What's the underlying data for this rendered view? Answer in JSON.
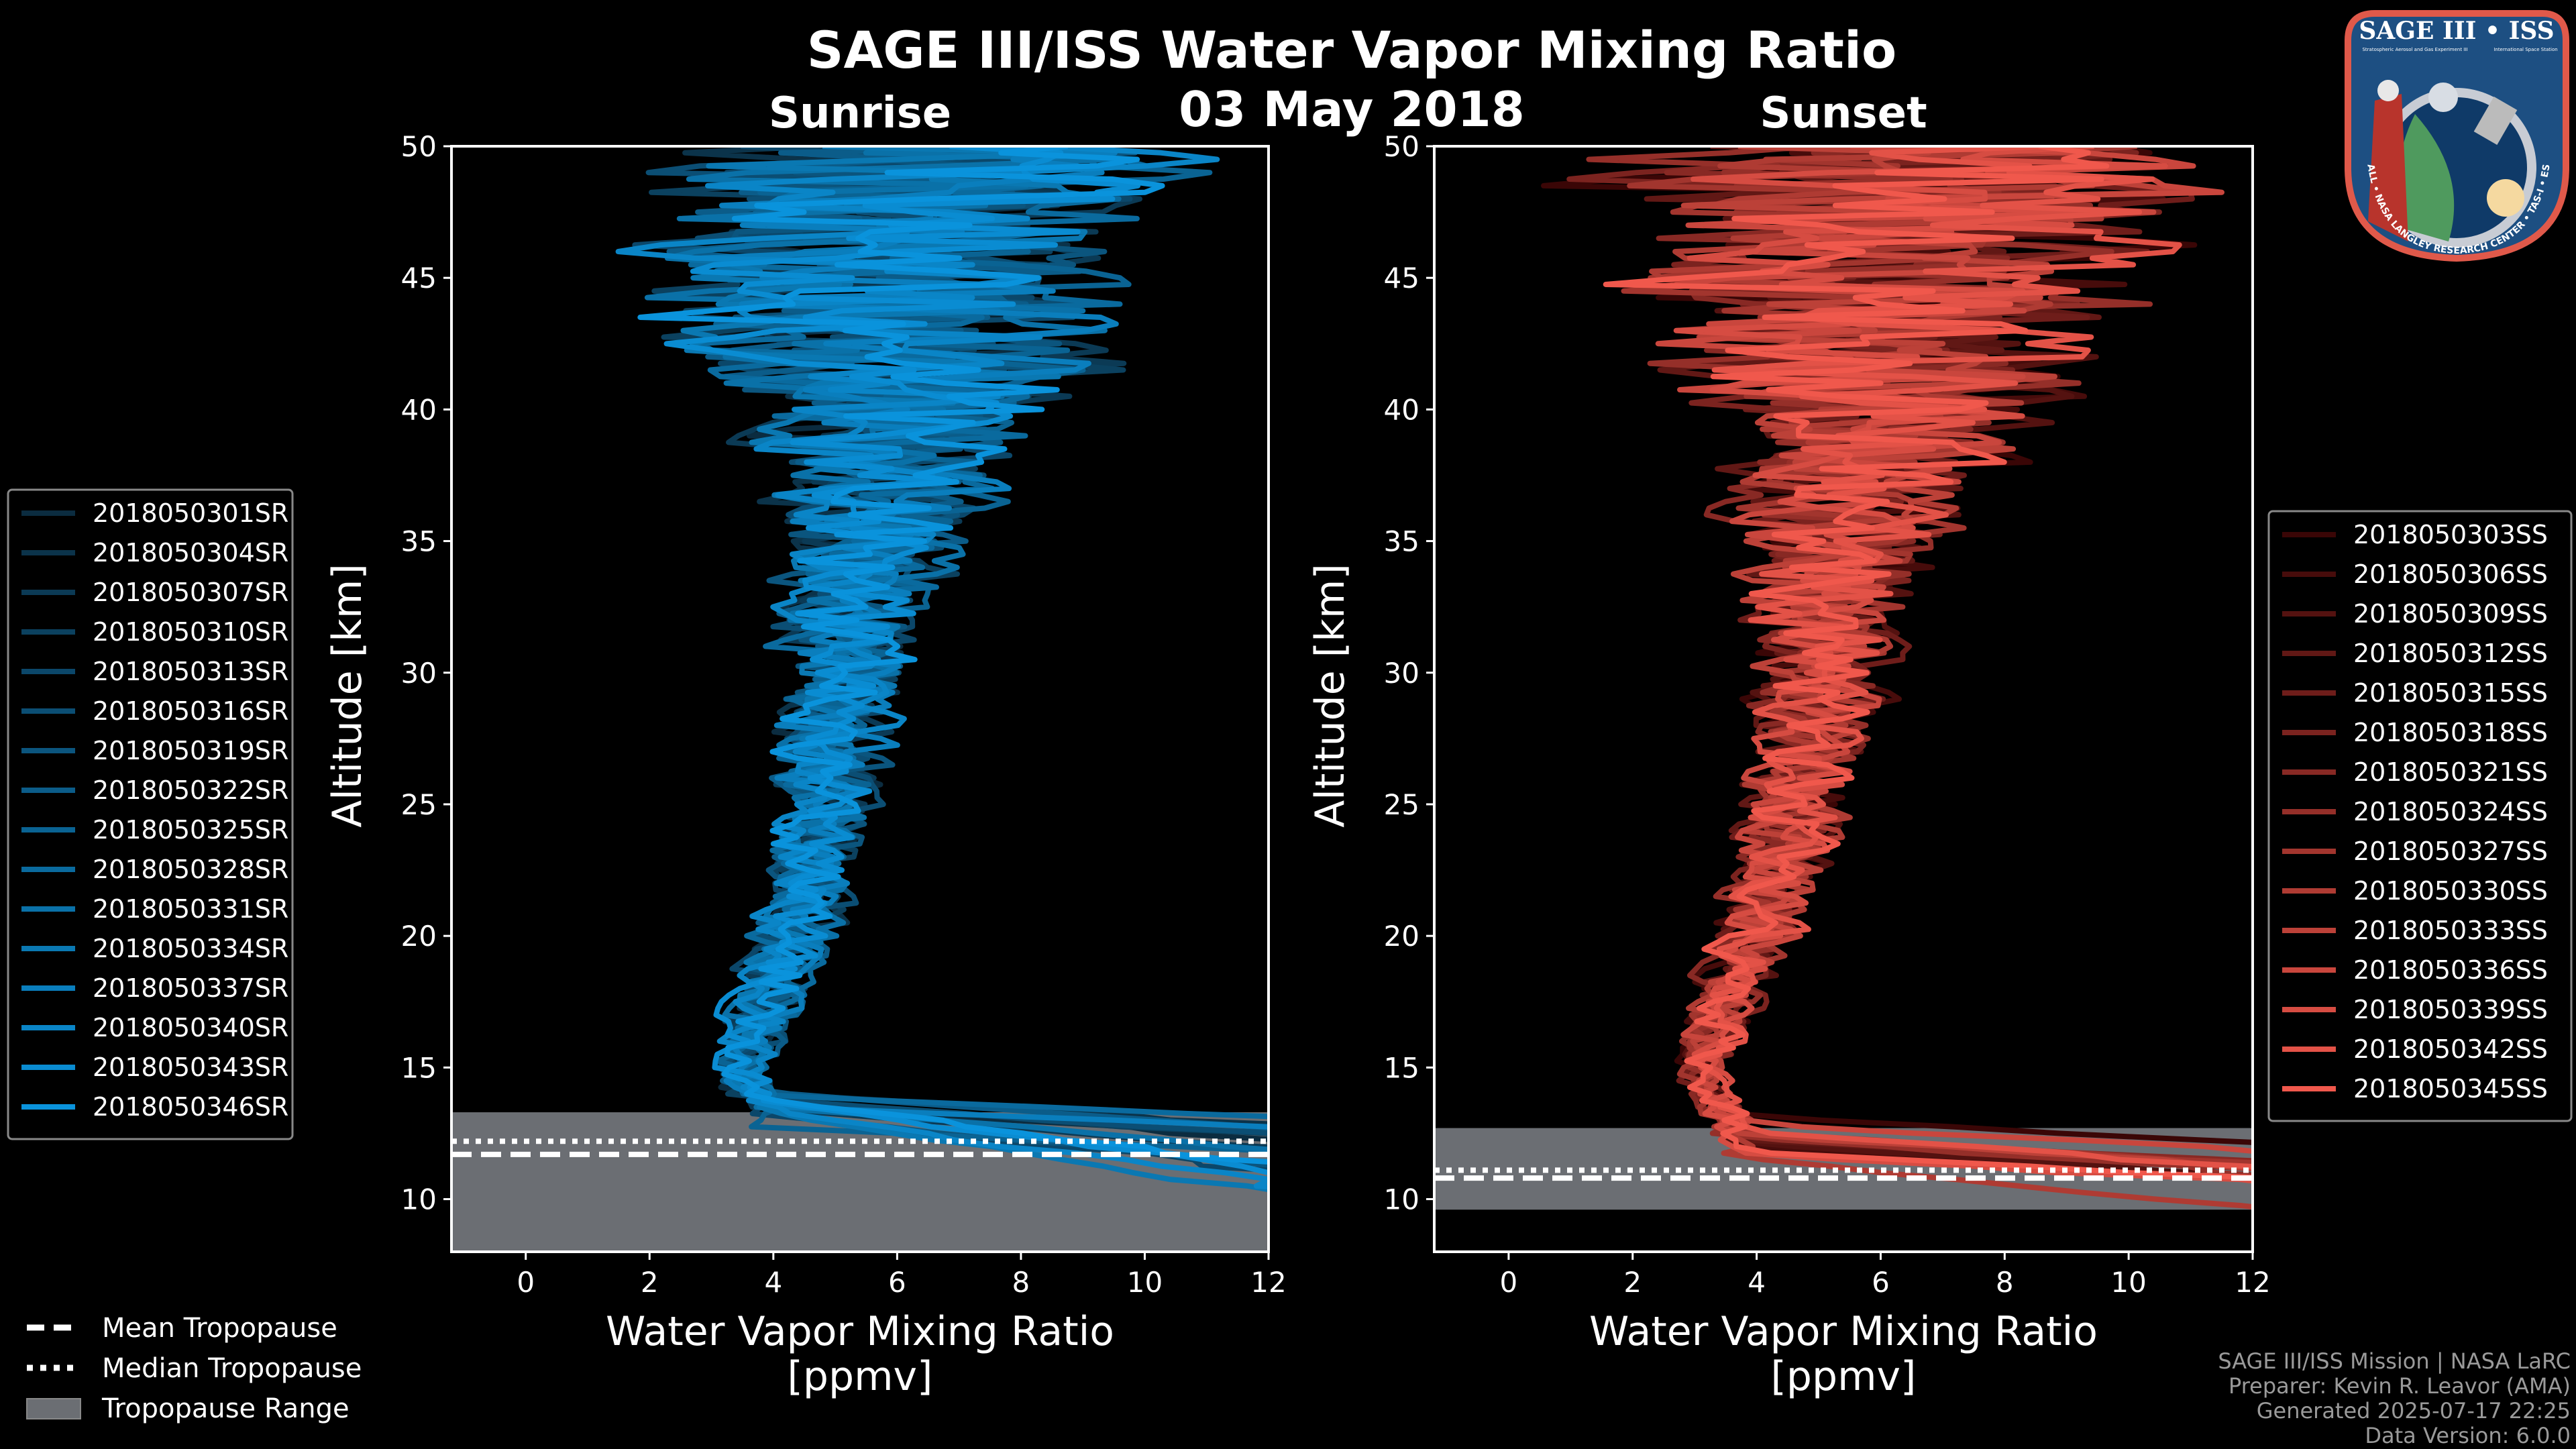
{
  "figure": {
    "title": "SAGE III/ISS Water Vapor Mixing Ratio",
    "date": "03 May 2018",
    "common_legend": {
      "mean": "Mean Tropopause",
      "median": "Median Tropopause",
      "range": "Tropopause Range"
    },
    "footer": [
      "SAGE III/ISS Mission | NASA LaRC",
      "Preparer: Kevin R. Leavor (AMA)",
      "Generated 2025-07-17 22:25",
      "Data Version: 6.0.0"
    ],
    "logo": {
      "title": "SAGE III • ISS",
      "subtitle_left": "Stratospheric Aerosol and Gas Experiment III",
      "subtitle_right": "International Space Station",
      "ring": "BALL • NASA LANGLEY RESEARCH CENTER • TAS-I • ESA"
    },
    "colors": {
      "background": "#000000",
      "range": "#6b6e73",
      "footer": "#9a9a9a"
    }
  },
  "chart_data": [
    {
      "type": "line",
      "title": "Sunrise",
      "xlabel": "Water Vapor Mixing Ratio",
      "xlabel_units": "[ppmv]",
      "ylabel": "Altitude [km]",
      "xlim": [
        -1.2,
        12
      ],
      "ylim": [
        8,
        50
      ],
      "xticks": [
        0,
        2,
        4,
        6,
        8,
        10,
        12
      ],
      "yticks": [
        10,
        15,
        20,
        25,
        30,
        35,
        40,
        45,
        50
      ],
      "legend_position": "left-outside",
      "color_dark": "#0b2c40",
      "color_bright": "#0a93dc",
      "tropopause": {
        "mean_km": 11.7,
        "median_km": 12.2,
        "range_km": [
          8.0,
          13.3
        ]
      },
      "mean_profile": {
        "altitude_km": [
          50,
          47,
          45,
          42,
          40,
          38,
          35,
          32,
          30,
          27,
          25,
          22,
          20,
          18,
          16,
          15,
          14,
          13.5
        ],
        "ppmv": [
          6.5,
          6.3,
          6.2,
          6.0,
          6.0,
          5.8,
          5.6,
          5.2,
          5.1,
          4.9,
          4.8,
          4.5,
          4.3,
          4.0,
          3.7,
          3.5,
          3.6,
          4.0
        ],
        "spread": [
          6.0,
          5.5,
          5.0,
          4.5,
          3.5,
          2.6,
          2.0,
          1.6,
          1.4,
          1.2,
          1.1,
          0.9,
          0.9,
          0.8,
          0.7,
          0.6,
          0.6,
          0.6
        ]
      },
      "series": [
        {
          "name": "2018050301SR"
        },
        {
          "name": "2018050304SR"
        },
        {
          "name": "2018050307SR"
        },
        {
          "name": "2018050310SR"
        },
        {
          "name": "2018050313SR"
        },
        {
          "name": "2018050316SR"
        },
        {
          "name": "2018050319SR"
        },
        {
          "name": "2018050322SR"
        },
        {
          "name": "2018050325SR"
        },
        {
          "name": "2018050328SR"
        },
        {
          "name": "2018050331SR"
        },
        {
          "name": "2018050334SR"
        },
        {
          "name": "2018050337SR"
        },
        {
          "name": "2018050340SR"
        },
        {
          "name": "2018050343SR"
        },
        {
          "name": "2018050346SR"
        }
      ]
    },
    {
      "type": "line",
      "title": "Sunset",
      "xlabel": "Water Vapor Mixing Ratio",
      "xlabel_units": "[ppmv]",
      "ylabel": "Altitude [km]",
      "xlim": [
        -1.2,
        12
      ],
      "ylim": [
        8,
        50
      ],
      "xticks": [
        0,
        2,
        4,
        6,
        8,
        10,
        12
      ],
      "yticks": [
        10,
        15,
        20,
        25,
        30,
        35,
        40,
        45,
        50
      ],
      "legend_position": "right-outside",
      "color_dark": "#3a0606",
      "color_bright": "#f0584c",
      "tropopause": {
        "mean_km": 10.8,
        "median_km": 11.1,
        "range_km": [
          9.6,
          12.7
        ]
      },
      "mean_profile": {
        "altitude_km": [
          50,
          47,
          45,
          42,
          40,
          38,
          35,
          32,
          30,
          27,
          25,
          22,
          20,
          18,
          16,
          15,
          14,
          13
        ],
        "ppmv": [
          6.5,
          6.3,
          6.2,
          6.0,
          6.0,
          5.8,
          5.4,
          5.1,
          5.0,
          4.8,
          4.6,
          4.3,
          4.0,
          3.6,
          3.3,
          3.1,
          3.2,
          3.6
        ],
        "spread": [
          6.5,
          6.0,
          5.5,
          5.0,
          4.0,
          3.0,
          2.2,
          1.7,
          1.5,
          1.3,
          1.2,
          1.0,
          0.9,
          0.8,
          0.6,
          0.5,
          0.5,
          0.5
        ]
      },
      "series": [
        {
          "name": "2018050303SS"
        },
        {
          "name": "2018050306SS"
        },
        {
          "name": "2018050309SS"
        },
        {
          "name": "2018050312SS"
        },
        {
          "name": "2018050315SS"
        },
        {
          "name": "2018050318SS"
        },
        {
          "name": "2018050321SS"
        },
        {
          "name": "2018050324SS"
        },
        {
          "name": "2018050327SS"
        },
        {
          "name": "2018050330SS"
        },
        {
          "name": "2018050333SS"
        },
        {
          "name": "2018050336SS"
        },
        {
          "name": "2018050339SS"
        },
        {
          "name": "2018050342SS"
        },
        {
          "name": "2018050345SS"
        }
      ]
    }
  ]
}
